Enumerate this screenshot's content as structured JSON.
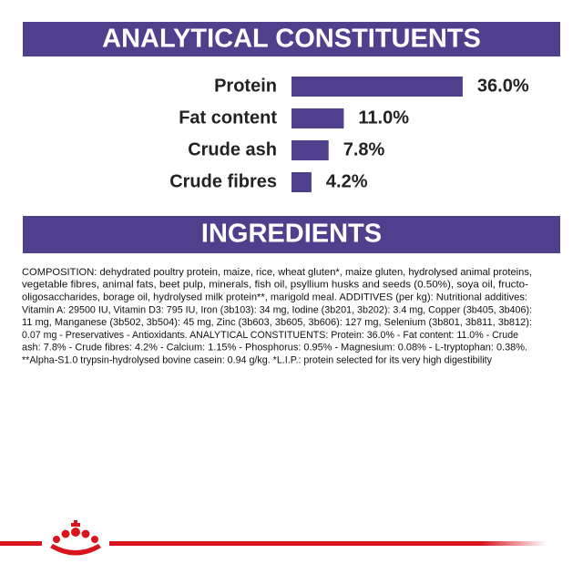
{
  "chart_data": {
    "type": "bar",
    "orientation": "horizontal",
    "title": "ANALYTICAL CONSTITUENTS",
    "categories": [
      "Protein",
      "Fat content",
      "Crude ash",
      "Crude fibres"
    ],
    "values": [
      36.0,
      11.0,
      7.8,
      4.2
    ],
    "value_labels": [
      "36.0%",
      "11.0%",
      "7.8%",
      "4.2%"
    ],
    "color": "#4f3f8c"
  },
  "ingredients": {
    "title": "INGREDIENTS",
    "lines": [
      "COMPOSITION: dehydrated poultry protein, maize, rice, wheat gluten*, maize gluten, hydrolysed animal proteins,",
      "vegetable fibres, animal fats, beet pulp, minerals, fish oil, psyllium husks and seeds (0.50%), soya oil, fructo-",
      "oligosaccharides, borage oil, hydrolysed milk protein**, marigold meal. ADDITIVES (per kg): Nutritional additives:",
      "Vitamin A: 29500 IU, Vitamin D3: 795 IU, Iron (3b103): 34 mg, Iodine (3b201, 3b202): 3.4 mg, Copper (3b405, 3b406):",
      "11 mg, Manganese (3b502, 3b504): 45 mg, Zinc (3b603, 3b605, 3b606): 127 mg, Selenium (3b801, 3b811, 3b812):",
      "0.07 mg - Preservatives - Antioxidants. ANALYTICAL CONSTITUENTS: Protein: 36.0% - Fat content: 11.0% - Crude",
      "ash: 7.8% - Crude fibres: 4.2% - Calcium: 1.15% - Phosphorus: 0.95% - Magnesium: 0.08% - L-tryptophan: 0.38%.",
      "**Alpha-S1.0 trypsin-hydrolysed bovine casein: 0.94 g/kg. *L.I.P.: protein selected for its very high digestibility"
    ]
  }
}
